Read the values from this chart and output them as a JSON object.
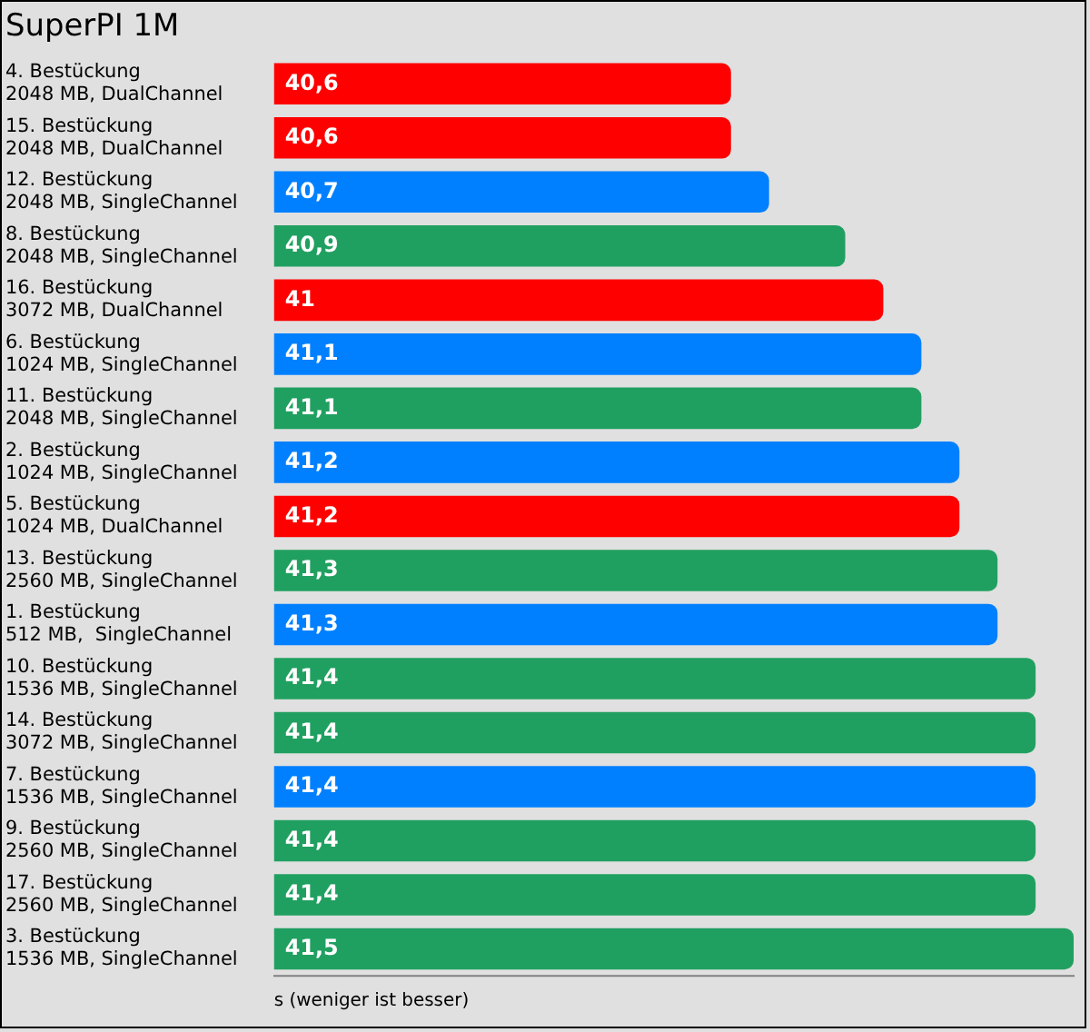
{
  "chart_data": {
    "type": "bar",
    "orientation": "horizontal",
    "title": "SuperPI 1M",
    "xlabel": "s (weniger ist besser)",
    "categories": [
      "4. Bestückung\n2048 MB, DualChannel",
      "15. Bestückung\n2048 MB, DualChannel",
      "12. Bestückung\n2048 MB, SingleChannel",
      "8. Bestückung\n2048 MB, SingleChannel",
      "16. Bestückung\n3072 MB, DualChannel",
      "6. Bestückung\n1024 MB, SingleChannel",
      "11. Bestückung\n2048 MB, SingleChannel",
      "2. Bestückung\n1024 MB, SingleChannel",
      "5. Bestückung\n1024 MB, DualChannel",
      "13. Bestückung\n2560 MB, SingleChannel",
      "1. Bestückung\n512 MB,  SingleChannel",
      "10. Bestückung\n1536 MB, SingleChannel",
      "14. Bestückung\n3072 MB, SingleChannel",
      "7. Bestückung\n1536 MB, SingleChannel",
      "9. Bestückung\n2560 MB, SingleChannel",
      "17. Bestückung\n2560 MB, SingleChannel",
      "3. Bestückung\n1536 MB, SingleChannel"
    ],
    "values": [
      40.6,
      40.6,
      40.7,
      40.9,
      41,
      41.1,
      41.1,
      41.2,
      41.2,
      41.3,
      41.3,
      41.4,
      41.4,
      41.4,
      41.4,
      41.4,
      41.5
    ],
    "value_labels": [
      "40,6",
      "40,6",
      "40,7",
      "40,9",
      "41",
      "41,1",
      "41,1",
      "41,2",
      "41,2",
      "41,3",
      "41,3",
      "41,4",
      "41,4",
      "41,4",
      "41,4",
      "41,4",
      "41,5"
    ],
    "colors": [
      "#ff0000",
      "#ff0000",
      "#0080ff",
      "#20a060",
      "#ff0000",
      "#0080ff",
      "#20a060",
      "#0080ff",
      "#ff0000",
      "#20a060",
      "#0080ff",
      "#20a060",
      "#20a060",
      "#0080ff",
      "#20a060",
      "#20a060",
      "#20a060"
    ],
    "xlim": [
      39.4,
      41.5
    ],
    "tick_labels": "y",
    "grid": false,
    "legend": false
  }
}
